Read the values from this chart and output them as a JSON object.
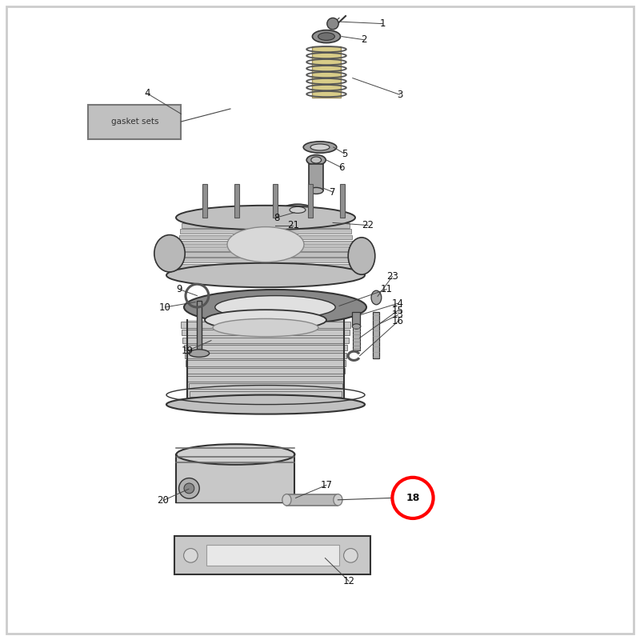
{
  "bg_color": "#ffffff",
  "fig_width": 8.0,
  "fig_height": 8.0,
  "line_color": "#333333",
  "label_color": "#111111",
  "highlight_color": "#ff0000",
  "gasket_label": "gasket sets"
}
